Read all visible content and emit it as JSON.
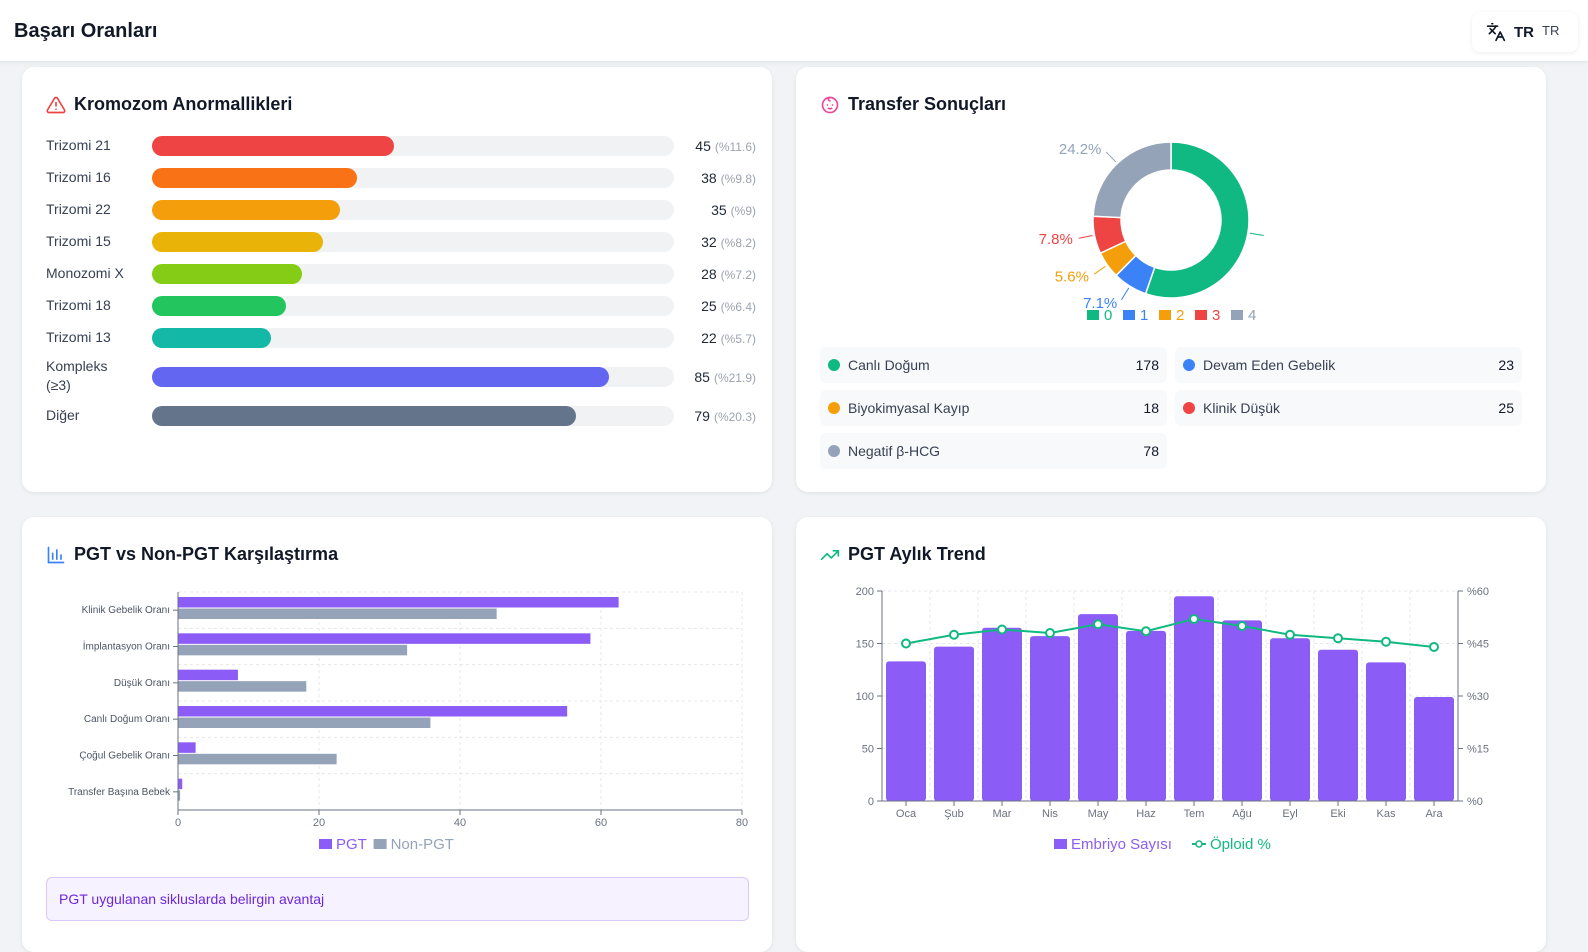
{
  "header": {
    "title": "Başarı Oranları",
    "lang_code": "TR",
    "lang_code_small": "TR"
  },
  "chromosome": {
    "title": "Kromozom Anormallikleri",
    "rows": [
      {
        "label": "Trizomi 21",
        "value": "45",
        "pct": "(%11.6)",
        "color": "#ef4444",
        "fraction": 0.464
      },
      {
        "label": "Trizomi 16",
        "value": "38",
        "pct": "(%9.8)",
        "color": "#f97316",
        "fraction": 0.392
      },
      {
        "label": "Trizomi 22",
        "value": "35",
        "pct": "(%9)",
        "color": "#f59e0b",
        "fraction": 0.36
      },
      {
        "label": "Trizomi 15",
        "value": "32",
        "pct": "(%8.2)",
        "color": "#eab308",
        "fraction": 0.328
      },
      {
        "label": "Monozomi X",
        "value": "28",
        "pct": "(%7.2)",
        "color": "#84cc16",
        "fraction": 0.288
      },
      {
        "label": "Trizomi 18",
        "value": "25",
        "pct": "(%6.4)",
        "color": "#22c55e",
        "fraction": 0.256
      },
      {
        "label": "Trizomi 13",
        "value": "22",
        "pct": "(%5.7)",
        "color": "#14b8a6",
        "fraction": 0.228
      },
      {
        "label": "Kompleks (≥3)",
        "value": "85",
        "pct": "(%21.9)",
        "color": "#6366f1",
        "fraction": 0.876
      },
      {
        "label": "Diğer",
        "value": "79",
        "pct": "(%20.3)",
        "color": "#64748b",
        "fraction": 0.812
      }
    ]
  },
  "transfer": {
    "title": "Transfer Sonuçları",
    "items": [
      {
        "name": "Canlı Doğum",
        "count": "178",
        "color": "#10b981"
      },
      {
        "name": "Devam Eden Gebelik",
        "count": "23",
        "color": "#3b82f6"
      },
      {
        "name": "Biyokimyasal Kayıp",
        "count": "18",
        "color": "#f59e0b"
      },
      {
        "name": "Klinik Düşük",
        "count": "25",
        "color": "#ef4444"
      },
      {
        "name": "Negatif β-HCG",
        "count": "78",
        "color": "#94a3b8"
      }
    ]
  },
  "pgt_compare": {
    "title": "PGT vs Non-PGT Karşılaştırma",
    "note": "PGT uygulanan sikluslarda belirgin avantaj"
  },
  "pgt_trend": {
    "title": "PGT Aylık Trend"
  },
  "chart_data": [
    {
      "type": "pie",
      "labels": [
        "0",
        "1",
        "2",
        "3",
        "4"
      ],
      "values": [
        178,
        23,
        18,
        25,
        78
      ],
      "colors": [
        "#10b981",
        "#3b82f6",
        "#f59e0b",
        "#ef4444",
        "#94a3b8"
      ],
      "data_labels": [
        "",
        "7.1%",
        "5.6%",
        "7.8%",
        "24.2%"
      ],
      "legend": "bottom"
    },
    {
      "type": "bar",
      "orientation": "horizontal",
      "categories": [
        "Klinik Gebelik Oranı",
        "İmplantasyon Oranı",
        "Düşük Oranı",
        "Canlı Doğum Oranı",
        "Çoğul Gebelik Oranı",
        "Transfer Başına Bebek"
      ],
      "series": [
        {
          "name": "PGT",
          "values": [
            62.5,
            58.5,
            8.5,
            55.2,
            2.5,
            0.6
          ],
          "color": "#8b5cf6"
        },
        {
          "name": "Non-PGT",
          "values": [
            45.2,
            32.5,
            18.2,
            35.8,
            22.5,
            0.3
          ],
          "color": "#94a3b8"
        }
      ],
      "xlim": [
        0,
        80
      ],
      "xticks": [
        0,
        20,
        40,
        60,
        80
      ],
      "grid": true,
      "legend": "bottom"
    },
    {
      "type": "bar",
      "categories": [
        "Oca",
        "Şub",
        "Mar",
        "Nis",
        "May",
        "Haz",
        "Tem",
        "Ağu",
        "Eyl",
        "Eki",
        "Kas",
        "Ara"
      ],
      "series": [
        {
          "name": "Embriyo Sayısı",
          "type": "bar",
          "axis": "left",
          "values": [
            133,
            147,
            165,
            157,
            178,
            162,
            195,
            172,
            155,
            144,
            132,
            99
          ],
          "color": "#8b5cf6"
        },
        {
          "name": "Öploid %",
          "type": "line",
          "axis": "right",
          "values": [
            45,
            47.5,
            49,
            48,
            50.5,
            48.5,
            52,
            50,
            47.5,
            46.5,
            45.5,
            44
          ],
          "color": "#10b981"
        }
      ],
      "ylim_left": [
        0,
        200
      ],
      "yticks_left": [
        0,
        50,
        100,
        150,
        200
      ],
      "ylim_right": [
        0,
        60
      ],
      "yticks_right": [
        "%0",
        "%15",
        "%30",
        "%45",
        "%60"
      ],
      "grid": true,
      "legend": "bottom"
    }
  ]
}
